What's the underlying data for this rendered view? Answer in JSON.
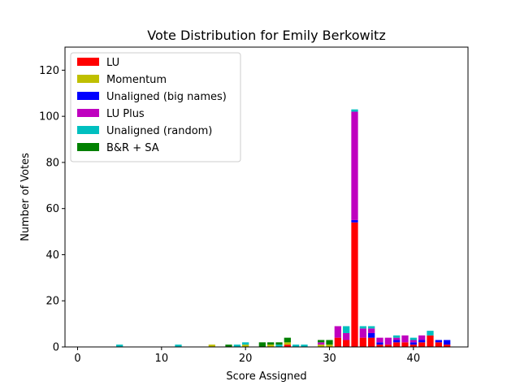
{
  "chart_data": {
    "type": "bar",
    "stacked": true,
    "title": "Vote Distribution for Emily Berkowitz",
    "xlabel": "Score Assigned",
    "ylabel": "Number of Votes",
    "xlim": [
      -1.5,
      46.5
    ],
    "ylim": [
      0,
      130
    ],
    "xticks": [
      0,
      10,
      20,
      30,
      40
    ],
    "yticks": [
      0,
      20,
      40,
      60,
      80,
      100,
      120
    ],
    "grid": false,
    "legend_position": "top-left",
    "x": [
      5,
      12,
      16,
      18,
      19,
      20,
      22,
      23,
      24,
      25,
      26,
      27,
      29,
      30,
      31,
      32,
      33,
      34,
      35,
      36,
      37,
      38,
      39,
      40,
      41,
      42,
      43,
      44
    ],
    "series": [
      {
        "name": "LU",
        "color": "#ff0000",
        "values": [
          0,
          0,
          0,
          0,
          0,
          0,
          0,
          0,
          0,
          1,
          0,
          0,
          0,
          0,
          4,
          3,
          54,
          4,
          4,
          1,
          1,
          2,
          2,
          1,
          2,
          5,
          2,
          1
        ]
      },
      {
        "name": "Momentum",
        "color": "#bfbf00",
        "values": [
          0,
          0,
          1,
          0,
          0,
          1,
          0,
          1,
          0,
          1,
          0,
          0,
          1,
          1,
          0,
          0,
          0,
          0,
          0,
          0,
          0,
          0,
          0,
          0,
          0,
          0,
          0,
          0
        ]
      },
      {
        "name": "Unaligned (big names)",
        "color": "#0000ff",
        "values": [
          0,
          0,
          0,
          0,
          0,
          0,
          0,
          0,
          0,
          0,
          0,
          0,
          0,
          0,
          0,
          0,
          1,
          0,
          2,
          1,
          0,
          1,
          0,
          1,
          1,
          0,
          1,
          2
        ]
      },
      {
        "name": "LU Plus",
        "color": "#bf00bf",
        "values": [
          0,
          0,
          0,
          0,
          0,
          0,
          0,
          0,
          0,
          0,
          0,
          0,
          1,
          0,
          5,
          3,
          47,
          4,
          2,
          2,
          3,
          1,
          3,
          1,
          2,
          0,
          0,
          0
        ]
      },
      {
        "name": "Unaligned (random)",
        "color": "#00bfbf",
        "values": [
          1,
          1,
          0,
          0,
          1,
          1,
          0,
          0,
          1,
          0,
          1,
          1,
          0,
          0,
          0,
          3,
          1,
          1,
          1,
          0,
          0,
          1,
          0,
          1,
          0,
          2,
          0,
          0
        ]
      },
      {
        "name": "B&R + SA",
        "color": "#008000",
        "values": [
          0,
          0,
          0,
          1,
          0,
          0,
          2,
          1,
          1,
          2,
          0,
          0,
          1,
          2,
          0,
          0,
          0,
          0,
          0,
          0,
          0,
          0,
          0,
          0,
          0,
          0,
          0,
          0
        ]
      }
    ]
  }
}
